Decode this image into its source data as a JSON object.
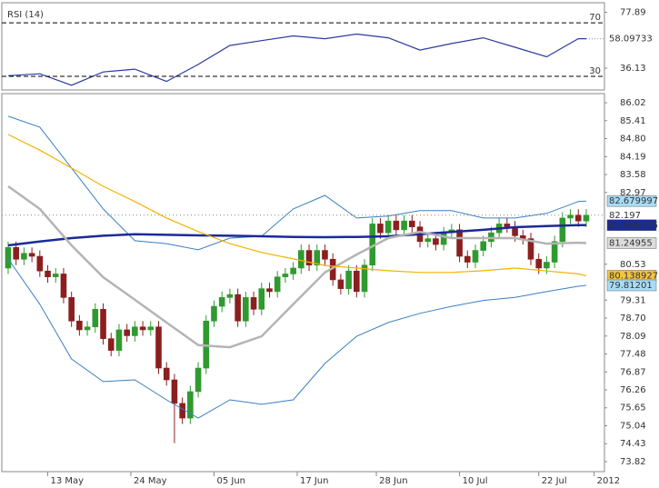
{
  "chart_data": [
    {
      "type": "line",
      "title": "RSI (14)",
      "xlim": [
        -0.8,
        75.3
      ],
      "ylim": [
        19.85,
        84.97
      ],
      "yticks": [
        77.89,
        36.13
      ],
      "levels": [
        70,
        30
      ],
      "series": [
        {
          "color": "#2b3aa0",
          "x": [
            0,
            4,
            8,
            12,
            16,
            20,
            24,
            28,
            32,
            36,
            40,
            44,
            48,
            52,
            56,
            60,
            64,
            68,
            72,
            73
          ],
          "values": [
            30.5,
            31.9,
            23.4,
            33.3,
            35.4,
            26.2,
            38.9,
            53.1,
            56.7,
            60.2,
            58.1,
            61.6,
            58.8,
            49.6,
            54.5,
            58.8,
            51.7,
            44.6,
            58.1,
            58.09733
          ]
        }
      ]
    },
    {
      "type": "candlestick",
      "xlim": [
        -0.8,
        75.3
      ],
      "ylim": [
        73.48,
        86.33
      ],
      "yticks": [
        86.02,
        85.41,
        84.8,
        84.19,
        83.58,
        82.97,
        80.53,
        79.31,
        78.7,
        78.09,
        77.48,
        76.87,
        76.26,
        75.65,
        75.04,
        74.43,
        73.82
      ],
      "ytick_labels": [
        "86.02",
        "85.41",
        "84.80",
        "84.19",
        "83.58",
        "82.97",
        "80.53",
        "79.31",
        "78.70",
        "78.09",
        "77.48",
        "76.87",
        "76.26",
        "75.65",
        "75.04",
        "74.43",
        "73.82"
      ],
      "xticks": [
        {
          "value": 5,
          "label": "13 May"
        },
        {
          "value": 15.5,
          "label": "24 May"
        },
        {
          "value": 26,
          "label": "05 Jun"
        },
        {
          "value": 36.5,
          "label": "17 Jun"
        },
        {
          "value": 46.5,
          "label": "28 Jun"
        },
        {
          "value": 57,
          "label": "10 Jul"
        },
        {
          "value": 67,
          "label": "22 Jul"
        },
        {
          "value": 74,
          "label": "2012"
        }
      ],
      "up_color": "#2f9a2f",
      "down_color": "#8b1e1e",
      "open": [
        80.4,
        81.1,
        80.7,
        80.9,
        80.8,
        80.3,
        80.1,
        80.2,
        79.4,
        78.6,
        78.3,
        78.4,
        79.0,
        78.0,
        77.6,
        78.3,
        78.1,
        78.4,
        78.3,
        78.4,
        77.0,
        76.6,
        75.8,
        75.3,
        76.2,
        77.0,
        78.6,
        79.1,
        79.4,
        79.5,
        78.6,
        79.4,
        79.0,
        79.7,
        79.6,
        80.1,
        80.2,
        80.4,
        81.0,
        80.5,
        81.0,
        80.7,
        80.0,
        79.7,
        80.3,
        79.6,
        80.5,
        81.9,
        81.6,
        82.0,
        81.7,
        82.0,
        81.8,
        81.3,
        81.4,
        81.2,
        81.6,
        81.7,
        80.8,
        80.6,
        81.0,
        81.3,
        81.6,
        81.9,
        81.8,
        81.5,
        81.4,
        80.7,
        80.4,
        80.6,
        81.3,
        82.1,
        82.2,
        82.0
      ],
      "high": [
        81.3,
        81.3,
        81.1,
        81.1,
        81.0,
        80.5,
        80.4,
        80.4,
        79.6,
        78.8,
        78.6,
        79.2,
        79.2,
        78.2,
        78.5,
        78.5,
        78.6,
        78.6,
        78.6,
        78.6,
        77.2,
        76.8,
        76.0,
        76.4,
        77.2,
        78.8,
        79.3,
        79.6,
        79.7,
        79.7,
        79.6,
        79.6,
        79.9,
        79.9,
        80.3,
        80.4,
        80.6,
        81.2,
        81.2,
        81.2,
        81.2,
        80.9,
        80.2,
        80.5,
        80.5,
        80.7,
        82.1,
        82.1,
        82.2,
        82.2,
        82.2,
        82.2,
        82.0,
        81.6,
        81.6,
        81.8,
        81.9,
        81.9,
        81.0,
        81.2,
        81.5,
        81.8,
        82.1,
        82.1,
        82.0,
        81.7,
        81.6,
        80.9,
        80.8,
        81.5,
        82.3,
        82.4,
        82.4,
        82.4
      ],
      "low": [
        80.2,
        80.5,
        80.5,
        80.6,
        80.1,
        79.9,
        79.9,
        79.2,
        78.4,
        78.1,
        78.1,
        78.2,
        77.8,
        77.4,
        77.4,
        77.9,
        77.9,
        78.1,
        78.1,
        76.8,
        76.4,
        74.45,
        75.1,
        75.1,
        76.0,
        76.8,
        78.4,
        78.9,
        79.2,
        78.4,
        78.4,
        78.8,
        78.8,
        79.4,
        79.4,
        79.9,
        80.0,
        80.2,
        80.3,
        80.3,
        80.5,
        79.8,
        79.5,
        79.5,
        79.4,
        79.4,
        80.3,
        81.4,
        81.4,
        81.5,
        81.5,
        81.6,
        81.1,
        81.1,
        81.0,
        81.0,
        81.4,
        80.6,
        80.4,
        80.4,
        80.8,
        81.1,
        81.4,
        81.6,
        81.3,
        81.2,
        80.5,
        80.2,
        80.2,
        80.4,
        81.1,
        81.9,
        81.8,
        81.8
      ],
      "close": [
        81.1,
        80.7,
        80.9,
        80.8,
        80.3,
        80.1,
        80.2,
        79.4,
        78.6,
        78.3,
        78.4,
        79.0,
        78.0,
        77.6,
        78.3,
        78.1,
        78.4,
        78.3,
        78.4,
        77.0,
        76.6,
        75.8,
        75.3,
        76.2,
        77.0,
        78.6,
        79.1,
        79.4,
        79.5,
        78.6,
        79.4,
        79.0,
        79.7,
        79.6,
        80.1,
        80.2,
        80.4,
        81.0,
        80.5,
        81.0,
        80.7,
        80.0,
        79.7,
        80.3,
        79.6,
        80.5,
        81.9,
        81.6,
        82.0,
        81.7,
        82.0,
        81.8,
        81.3,
        81.4,
        81.2,
        81.6,
        81.7,
        80.8,
        80.6,
        81.0,
        81.3,
        81.6,
        81.9,
        81.8,
        81.5,
        81.4,
        80.7,
        80.4,
        80.6,
        81.3,
        82.1,
        82.2,
        82.0,
        82.197
      ],
      "series": [
        {
          "color": "#3a7fc4",
          "width": 1,
          "box": "#a9dcf5",
          "x": [
            0,
            4,
            8,
            12,
            16,
            20,
            24,
            28,
            32,
            36,
            40,
            44,
            48,
            52,
            56,
            60,
            64,
            68,
            72,
            73
          ],
          "values": [
            85.56,
            85.19,
            83.8,
            82.41,
            81.33,
            81.23,
            81.02,
            81.42,
            81.48,
            82.41,
            82.87,
            82.1,
            82.17,
            82.35,
            82.35,
            82.1,
            82.1,
            82.26,
            82.66,
            82.679997
          ]
        },
        {
          "color": "#1a2a9a",
          "width": 2.5,
          "box": "#1a2a9a",
          "x": [
            0,
            4,
            8,
            12,
            16,
            20,
            24,
            28,
            32,
            36,
            40,
            44,
            48,
            52,
            56,
            60,
            64,
            68,
            72,
            73
          ],
          "values": [
            81.17,
            81.3,
            81.42,
            81.5,
            81.55,
            81.53,
            81.51,
            81.5,
            81.48,
            81.46,
            81.45,
            81.46,
            81.48,
            81.55,
            81.63,
            81.7,
            81.79,
            81.83,
            81.86,
            81.858175
          ]
        },
        {
          "color": "#b4b4b4",
          "width": 2.5,
          "box": "#dcdcdc",
          "x": [
            0,
            4,
            8,
            12,
            16,
            20,
            24,
            28,
            32,
            36,
            40,
            44,
            48,
            52,
            56,
            60,
            64,
            68,
            72,
            73
          ],
          "values": [
            83.18,
            82.41,
            81.17,
            80.09,
            79.32,
            78.55,
            77.78,
            77.71,
            78.08,
            79.17,
            80.25,
            80.86,
            81.42,
            81.63,
            81.42,
            81.42,
            81.42,
            81.23,
            81.26,
            81.24955
          ]
        },
        {
          "color": "#f0b400",
          "width": 1.2,
          "box": "#f5c242",
          "x": [
            0,
            4,
            8,
            12,
            16,
            20,
            24,
            28,
            32,
            36,
            40,
            44,
            48,
            52,
            56,
            60,
            64,
            68,
            72,
            73
          ],
          "values": [
            84.94,
            84.41,
            83.8,
            83.18,
            82.66,
            82.1,
            81.64,
            81.23,
            80.93,
            80.71,
            80.49,
            80.4,
            80.31,
            80.25,
            80.25,
            80.31,
            80.4,
            80.3,
            80.2,
            80.138927
          ]
        },
        {
          "color": "#3a7fc4",
          "width": 1,
          "box": "#a9dcf5",
          "x": [
            0,
            4,
            8,
            12,
            16,
            20,
            24,
            28,
            32,
            36,
            40,
            44,
            48,
            52,
            56,
            60,
            64,
            68,
            72,
            73
          ],
          "values": [
            80.71,
            79.17,
            77.31,
            76.54,
            76.6,
            75.92,
            75.3,
            75.92,
            75.77,
            75.92,
            77.16,
            78.08,
            78.55,
            78.86,
            79.1,
            79.3,
            79.4,
            79.6,
            79.78,
            79.81201
          ]
        }
      ]
    }
  ]
}
